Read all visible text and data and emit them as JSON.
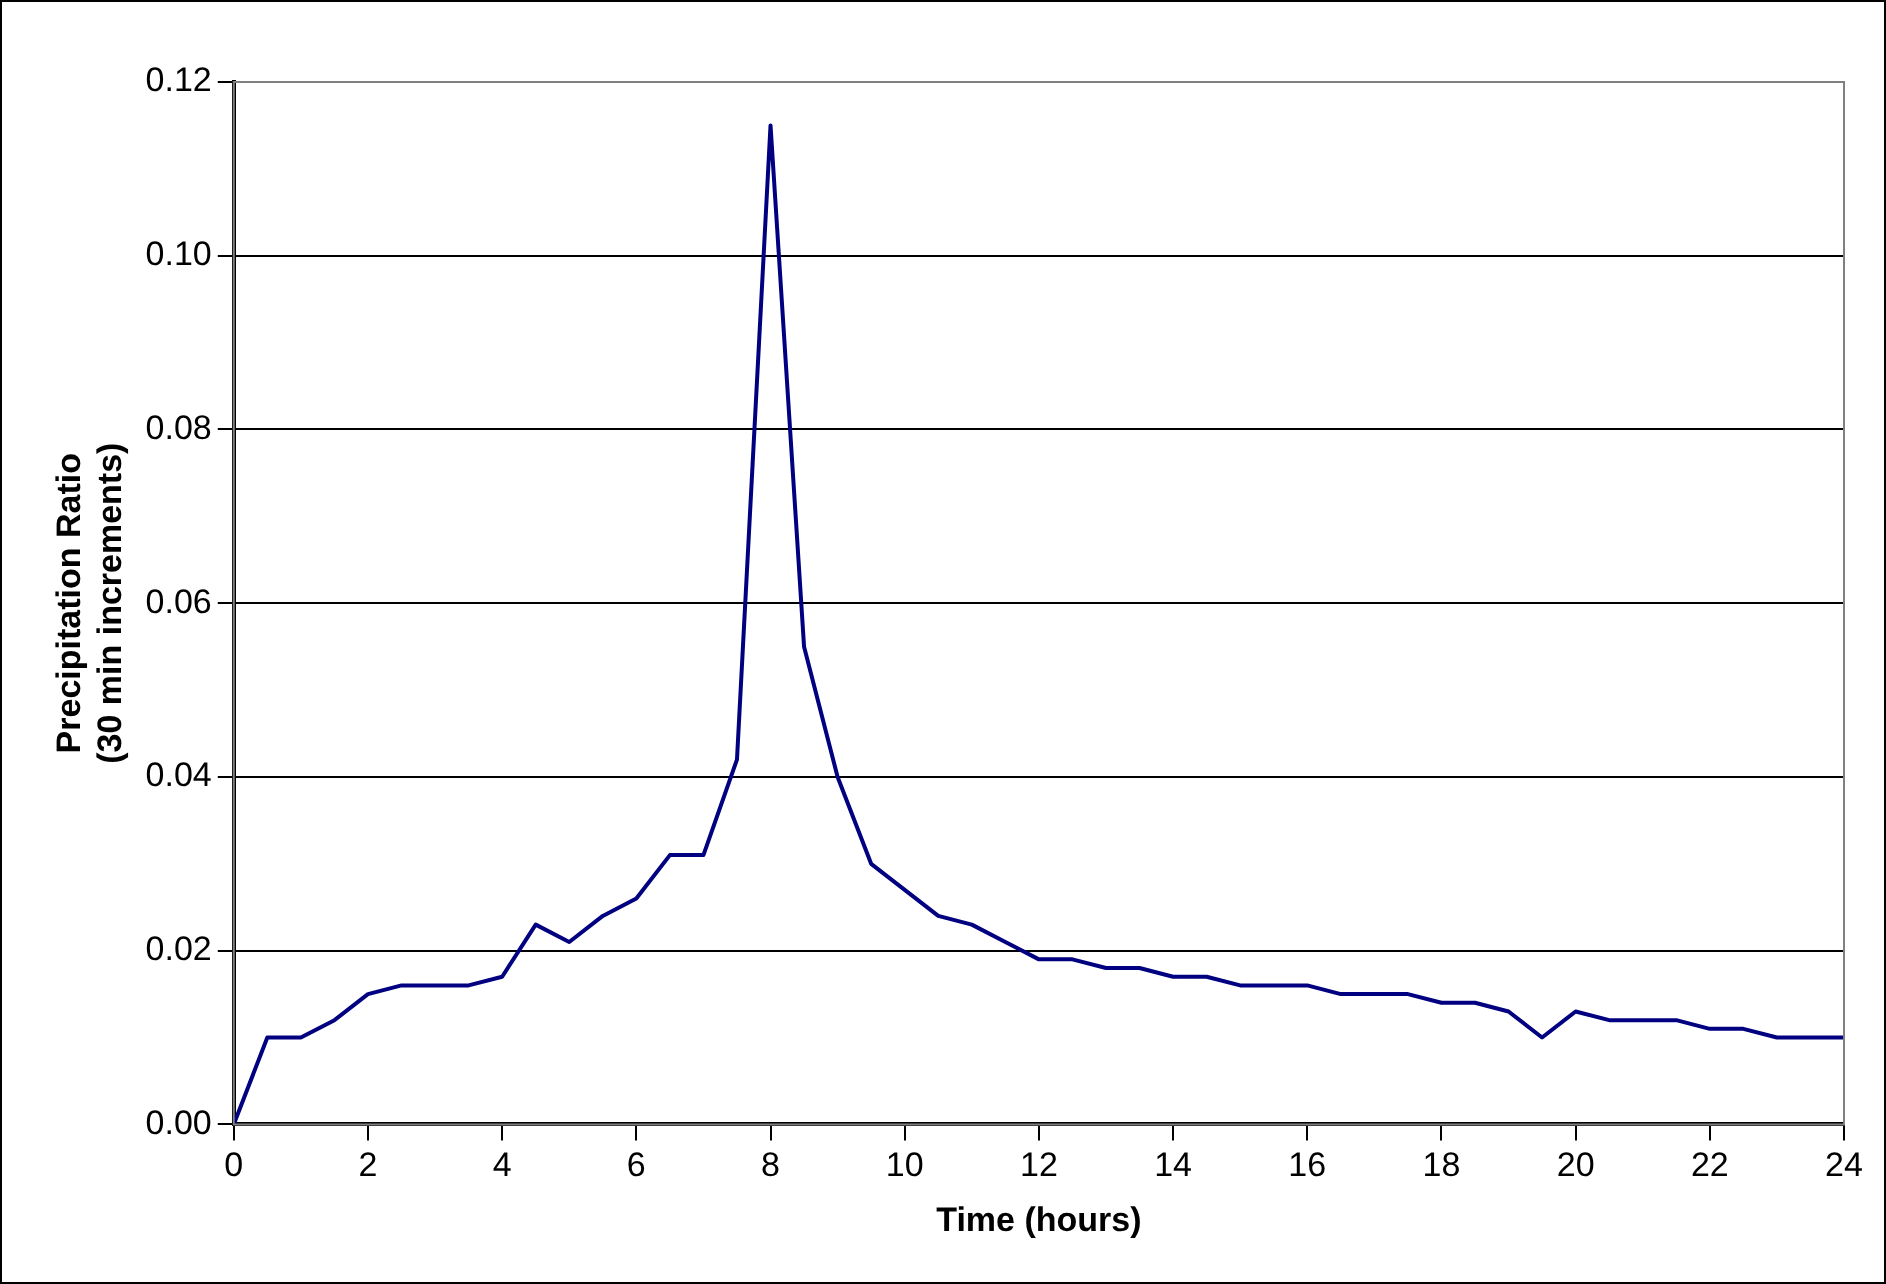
{
  "chart_data": {
    "type": "line",
    "xlabel": "Time (hours)",
    "ylabel": "Precipitation Ratio\n(30 min increments)",
    "x": [
      0,
      0.5,
      1,
      1.5,
      2,
      2.5,
      3,
      3.5,
      4,
      4.5,
      5,
      5.5,
      6,
      6.5,
      7,
      7.5,
      8,
      8.5,
      9,
      9.5,
      10,
      10.5,
      11,
      11.5,
      12,
      12.5,
      13,
      13.5,
      14,
      14.5,
      15,
      15.5,
      16,
      16.5,
      17,
      17.5,
      18,
      18.5,
      19,
      19.5,
      20,
      20.5,
      21,
      21.5,
      22,
      22.5,
      23,
      23.5,
      24
    ],
    "series": [
      {
        "color": "#000080",
        "values": [
          0,
          0.01,
          0.01,
          0.012,
          0.015,
          0.016,
          0.016,
          0.016,
          0.017,
          0.023,
          0.021,
          0.024,
          0.026,
          0.031,
          0.031,
          0.042,
          0.115,
          0.055,
          0.04,
          0.03,
          0.027,
          0.024,
          0.023,
          0.021,
          0.019,
          0.019,
          0.018,
          0.018,
          0.017,
          0.017,
          0.016,
          0.016,
          0.016,
          0.015,
          0.015,
          0.015,
          0.014,
          0.014,
          0.013,
          0.01,
          0.013,
          0.012,
          0.012,
          0.012,
          0.011,
          0.011,
          0.01,
          0.01,
          0.01
        ]
      }
    ],
    "xlim": [
      0,
      24
    ],
    "xticks": [
      0,
      2,
      4,
      6,
      8,
      10,
      12,
      14,
      16,
      18,
      20,
      22,
      24
    ],
    "ylim": [
      0,
      0.12
    ],
    "yticks": [
      {
        "value": 0,
        "label": "0.00"
      },
      {
        "value": 0.02,
        "label": "0.02"
      },
      {
        "value": 0.04,
        "label": "0.04"
      },
      {
        "value": 0.06,
        "label": "0.06"
      },
      {
        "value": 0.08,
        "label": "0.08"
      },
      {
        "value": 0.1,
        "label": "0.10"
      },
      {
        "value": 0.12,
        "label": "0.12"
      }
    ],
    "grid": "y",
    "legend": false,
    "marker": "none",
    "line_style": "solid"
  }
}
